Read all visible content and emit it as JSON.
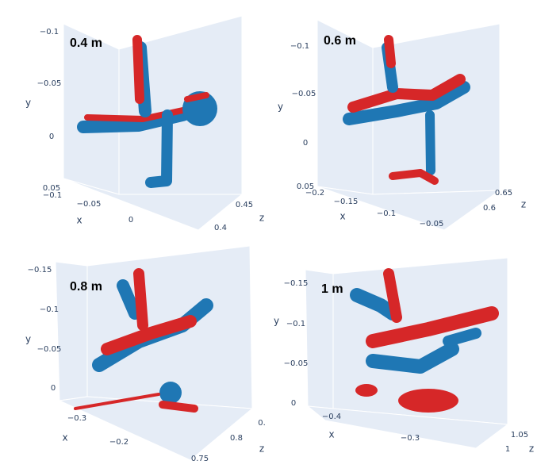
{
  "panels": [
    {
      "label": "0.4 m",
      "x": {
        "title": "x",
        "ticks": [
          "−0.1",
          "−0.05",
          "0"
        ]
      },
      "y": {
        "title": "y",
        "ticks": [
          "−0.1",
          "−0.05",
          "0",
          "0.05"
        ]
      },
      "z": {
        "title": "z",
        "ticks": [
          "0.45",
          "0.4"
        ]
      }
    },
    {
      "label": "0.6 m",
      "x": {
        "title": "x",
        "ticks": [
          "−0.2",
          "−0.15",
          "−0.1",
          "−0.05"
        ]
      },
      "y": {
        "title": "y",
        "ticks": [
          "−0.1",
          "−0.05",
          "0",
          "0.05"
        ]
      },
      "z": {
        "title": "z",
        "ticks": [
          "0.65",
          "0.6"
        ]
      }
    },
    {
      "label": "0.8 m",
      "x": {
        "title": "x",
        "ticks": [
          "−0.3",
          "−0.2"
        ]
      },
      "y": {
        "title": "y",
        "ticks": [
          "−0.15",
          "−0.1",
          "−0.05",
          "0"
        ]
      },
      "z": {
        "title": "z",
        "ticks": [
          "0.",
          "0.8",
          "0.75"
        ]
      }
    },
    {
      "label": "1 m",
      "x": {
        "title": "x",
        "ticks": [
          "−0.4",
          "−0.3"
        ]
      },
      "y": {
        "title": "y",
        "ticks": [
          "−0.15",
          "−0.1",
          "−0.05",
          "0"
        ]
      },
      "z": {
        "title": "z",
        "ticks": [
          "1.05",
          "1"
        ]
      }
    }
  ]
}
